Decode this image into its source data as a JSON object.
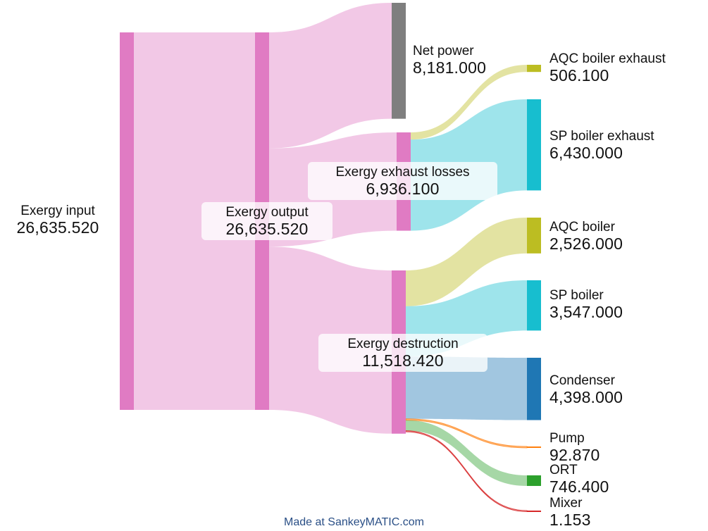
{
  "chart_data": {
    "type": "sankey",
    "units_note": "",
    "nodes": [
      {
        "id": "exergy_input",
        "name": "Exergy input",
        "value_label": "26,635.520",
        "value": 26635.52,
        "color": "#e07bc3"
      },
      {
        "id": "exergy_output",
        "name": "Exergy output",
        "value_label": "26,635.520",
        "value": 26635.52,
        "color": "#e07bc3"
      },
      {
        "id": "net_power",
        "name": "Net power",
        "value_label": "8,181.000",
        "value": 8181.0,
        "color": "#7f7f7f"
      },
      {
        "id": "exergy_exhaust_losses",
        "name": "Exergy exhaust losses",
        "value_label": "6,936.100",
        "value": 6936.1,
        "color": "#e07bc3"
      },
      {
        "id": "exergy_destruction",
        "name": "Exergy destruction",
        "value_label": "11,518.420",
        "value": 11518.42,
        "color": "#e07bc3"
      },
      {
        "id": "aqc_boiler_exhaust",
        "name": "AQC boiler exhaust",
        "value_label": "506.100",
        "value": 506.1,
        "color": "#bcbd22"
      },
      {
        "id": "sp_boiler_exhaust",
        "name": "SP boiler exhaust",
        "value_label": "6,430.000",
        "value": 6430.0,
        "color": "#17becf"
      },
      {
        "id": "aqc_boiler",
        "name": "AQC boiler",
        "value_label": "2,526.000",
        "value": 2526.0,
        "color": "#bcbd22"
      },
      {
        "id": "sp_boiler",
        "name": "SP boiler",
        "value_label": "3,547.000",
        "value": 3547.0,
        "color": "#17becf"
      },
      {
        "id": "condenser",
        "name": "Condenser",
        "value_label": "4,398.000",
        "value": 4398.0,
        "color": "#1f77b4"
      },
      {
        "id": "pump",
        "name": "Pump",
        "value_label": "92.870",
        "value": 92.87,
        "color": "#ff7f0e"
      },
      {
        "id": "ort",
        "name": "ORT",
        "value_label": "746.400",
        "value": 746.4,
        "color": "#2ca02c"
      },
      {
        "id": "mixer",
        "name": "Mixer",
        "value_label": "1.153",
        "value": 1.153,
        "color": "#d62728"
      }
    ],
    "flows": [
      {
        "source": "exergy_input",
        "target": "exergy_output",
        "value": 26635.52
      },
      {
        "source": "exergy_output",
        "target": "net_power",
        "value": 8181.0
      },
      {
        "source": "exergy_output",
        "target": "exergy_exhaust_losses",
        "value": 6936.1
      },
      {
        "source": "exergy_output",
        "target": "exergy_destruction",
        "value": 11518.42
      },
      {
        "source": "exergy_exhaust_losses",
        "target": "aqc_boiler_exhaust",
        "value": 506.1
      },
      {
        "source": "exergy_exhaust_losses",
        "target": "sp_boiler_exhaust",
        "value": 6430.0
      },
      {
        "source": "exergy_destruction",
        "target": "aqc_boiler",
        "value": 2526.0
      },
      {
        "source": "exergy_destruction",
        "target": "sp_boiler",
        "value": 3547.0
      },
      {
        "source": "exergy_destruction",
        "target": "condenser",
        "value": 4398.0
      },
      {
        "source": "exergy_destruction",
        "target": "pump",
        "value": 92.87
      },
      {
        "source": "exergy_destruction",
        "target": "ort",
        "value": 746.4
      },
      {
        "source": "exergy_destruction",
        "target": "mixer",
        "value": 1.153
      }
    ]
  },
  "footer": {
    "credit": "Made at SankeyMATIC.com"
  }
}
